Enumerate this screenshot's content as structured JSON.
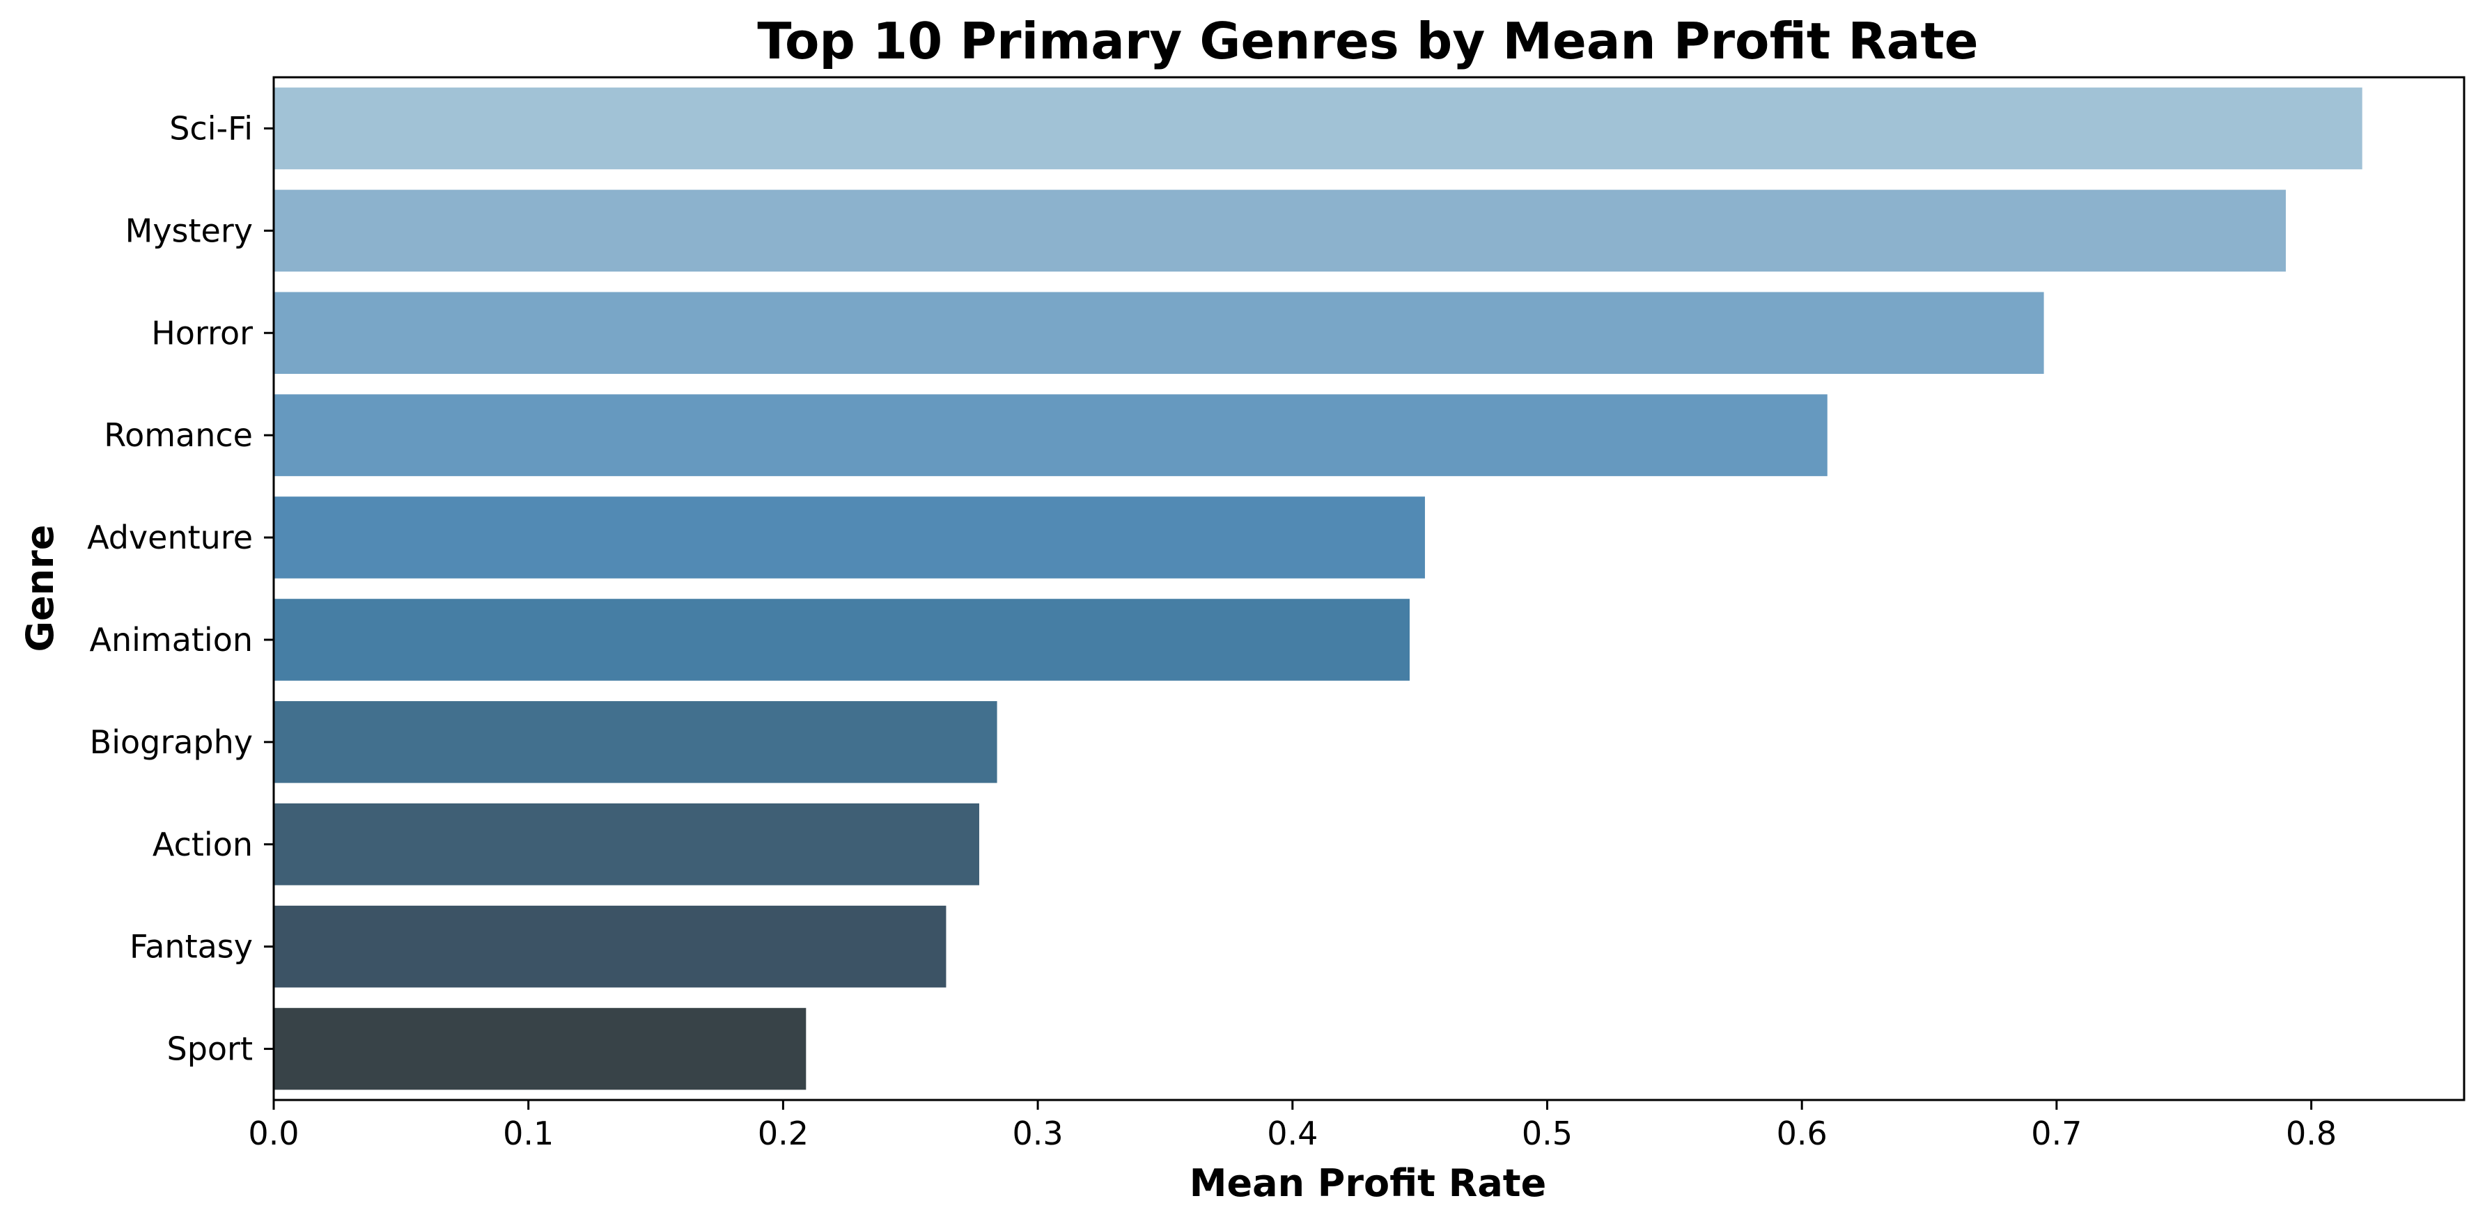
{
  "chart_data": {
    "type": "bar",
    "orientation": "horizontal",
    "title": "Top 10 Primary Genres by Mean Profit Rate",
    "xlabel": "Mean Profit Rate",
    "ylabel": "Genre",
    "categories": [
      "Sci-Fi",
      "Mystery",
      "Horror",
      "Romance",
      "Adventure",
      "Animation",
      "Biography",
      "Action",
      "Fantasy",
      "Sport"
    ],
    "values": [
      0.82,
      0.79,
      0.695,
      0.61,
      0.452,
      0.446,
      0.284,
      0.277,
      0.264,
      0.209
    ],
    "colors": [
      "#a1c2d6",
      "#8cb2cd",
      "#79a6c7",
      "#6699bf",
      "#528ab4",
      "#467ea4",
      "#42708e",
      "#3f5f75",
      "#3c5365",
      "#384348"
    ],
    "xlim": [
      0,
      0.86
    ],
    "xticks": [
      0.0,
      0.1,
      0.2,
      0.3,
      0.4,
      0.5,
      0.6,
      0.7,
      0.8
    ],
    "xtick_labels": [
      "0.0",
      "0.1",
      "0.2",
      "0.3",
      "0.4",
      "0.5",
      "0.6",
      "0.7",
      "0.8"
    ],
    "grid": false,
    "legend": null
  }
}
